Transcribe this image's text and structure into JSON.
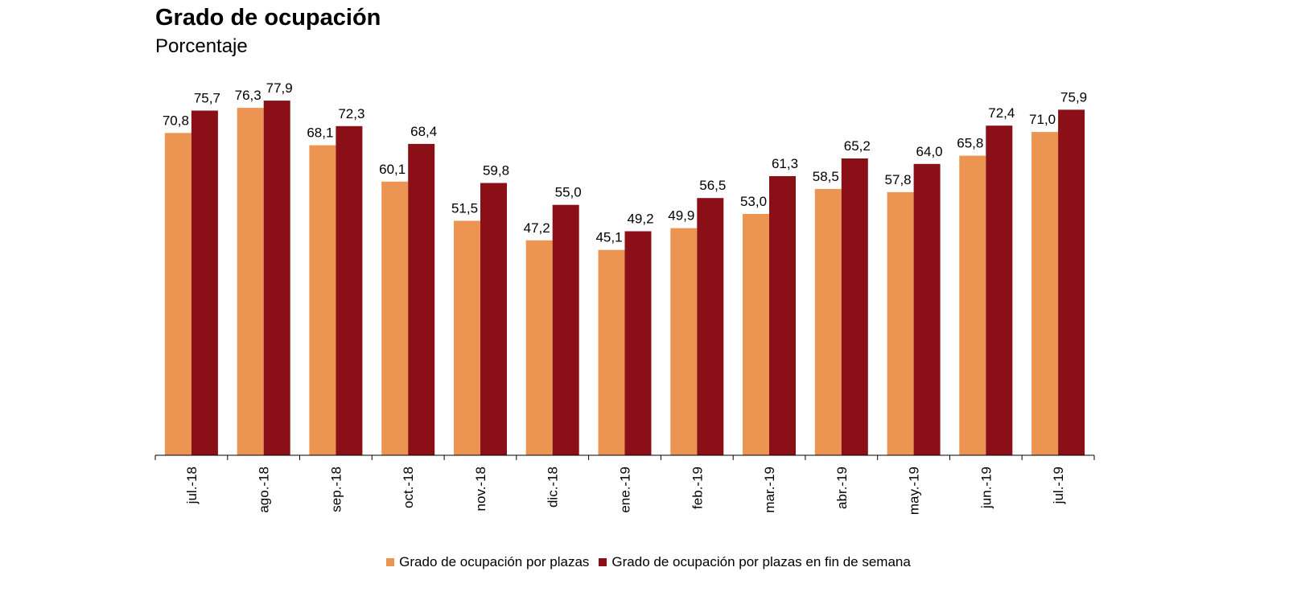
{
  "chart_data": {
    "type": "bar",
    "title": "Grado de ocupación",
    "subtitle": "Porcentaje",
    "categories": [
      "jul.-18",
      "ago.-18",
      "sep.-18",
      "oct.-18",
      "nov.-18",
      "dic.-18",
      "ene.-19",
      "feb.-19",
      "mar.-19",
      "abr.-19",
      "may.-19",
      "jun.-19",
      "jul.-19"
    ],
    "series": [
      {
        "name": "Grado de ocupación por plazas",
        "color": "#ec9451",
        "values": [
          70.8,
          76.3,
          68.1,
          60.1,
          51.5,
          47.2,
          45.1,
          49.9,
          53.0,
          58.5,
          57.8,
          65.8,
          71.0
        ],
        "labels": [
          "70,8",
          "76,3",
          "68,1",
          "60,1",
          "51,5",
          "47,2",
          "45,1",
          "49,9",
          "53,0",
          "58,5",
          "57,8",
          "65,8",
          "71,0"
        ]
      },
      {
        "name": "Grado de ocupación por plazas en fin de semana",
        "color": "#8b0f16",
        "values": [
          75.7,
          77.9,
          72.3,
          68.4,
          59.8,
          55.0,
          49.2,
          56.5,
          61.3,
          65.2,
          64.0,
          72.4,
          75.9
        ],
        "labels": [
          "75,7",
          "77,9",
          "72,3",
          "68,4",
          "59,8",
          "55,0",
          "49,2",
          "56,5",
          "61,3",
          "65,2",
          "64,0",
          "72,4",
          "75,9"
        ]
      }
    ],
    "ylim": [
      0,
      100
    ],
    "grid": false,
    "legend_position": "bottom"
  }
}
